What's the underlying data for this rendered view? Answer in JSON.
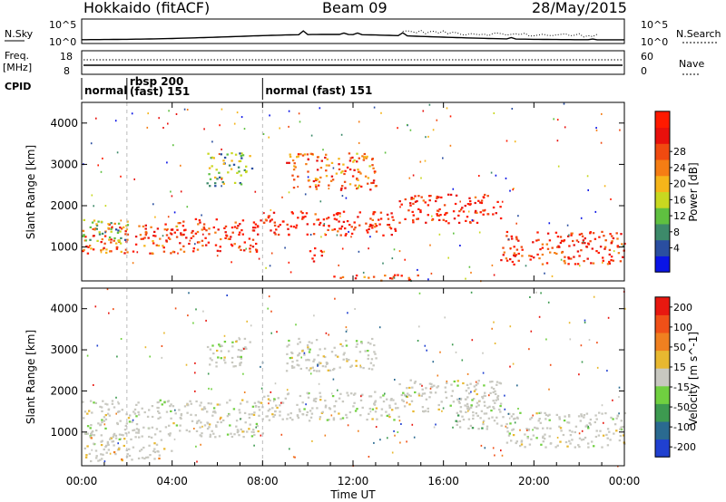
{
  "header": {
    "station": "Hokkaido (fitACF)",
    "beam": "Beam 09",
    "date": "28/May/2015"
  },
  "noise_panel": {
    "left_label": "N.Sky",
    "right_label": "N.Search",
    "tick_top": "10^5",
    "tick_bottom": "10^0"
  },
  "freq_panel": {
    "left_label_1": "Freq.",
    "left_label_2": "[MHz]",
    "right_label": "Nave",
    "left_ticks": [
      "18",
      "8"
    ],
    "right_ticks": [
      "60",
      "0"
    ]
  },
  "cpid_panel": {
    "label": "CPID",
    "segments": [
      {
        "start_h": 0.0,
        "end_h": 2.0,
        "text1": "normal",
        "text2": ""
      },
      {
        "start_h": 2.0,
        "end_h": 8.0,
        "text1": "rbsp 200",
        "text2": "(fast) 151"
      },
      {
        "start_h": 8.0,
        "end_h": 24.0,
        "text1": "normal (fast) 151",
        "text2": ""
      }
    ]
  },
  "chart_data": [
    {
      "type": "heatmap",
      "name": "Power",
      "ylabel": "Slant Range [km]",
      "ylim": [
        180,
        4500
      ],
      "yticks": [
        1000,
        2000,
        3000,
        4000
      ],
      "colorbar_label": "Power [dB]",
      "colorbar_ticks": [
        "4",
        "8",
        "12",
        "16",
        "20",
        "24",
        "28"
      ],
      "colorbar_colors": [
        "#0a14e6",
        "#2a4ea0",
        "#3d8a6a",
        "#5fc040",
        "#c8d820",
        "#f5b51a",
        "#f57d14",
        "#f04a10",
        "#e8100c",
        "#ff1a00"
      ],
      "regions": [
        {
          "t0": 0.0,
          "t1": 4.0,
          "r0": 850,
          "r1": 1600,
          "level": 0.75
        },
        {
          "t0": 0.0,
          "t1": 2.0,
          "r0": 1100,
          "r1": 1700,
          "level": 0.4
        },
        {
          "t0": 4.0,
          "t1": 8.0,
          "r0": 900,
          "r1": 1700,
          "level": 0.85
        },
        {
          "t0": 8.0,
          "t1": 14.0,
          "r0": 1300,
          "r1": 1900,
          "level": 0.9
        },
        {
          "t0": 14.0,
          "t1": 18.5,
          "r0": 1600,
          "r1": 2300,
          "level": 0.9
        },
        {
          "t0": 18.5,
          "t1": 24.0,
          "r0": 600,
          "r1": 1400,
          "level": 0.85
        },
        {
          "t0": 5.5,
          "t1": 7.5,
          "r0": 2500,
          "r1": 3300,
          "level": 0.35
        },
        {
          "t0": 9.0,
          "t1": 13.0,
          "r0": 2400,
          "r1": 3300,
          "level": 0.7
        },
        {
          "t0": 10.0,
          "t1": 10.6,
          "r0": 600,
          "r1": 1000,
          "level": 0.95
        },
        {
          "t0": 11.0,
          "t1": 15.0,
          "r0": 200,
          "r1": 350,
          "level": 0.8
        }
      ]
    },
    {
      "type": "heatmap",
      "name": "Velocity",
      "ylabel": "Slant Range [km]",
      "ylim": [
        180,
        4500
      ],
      "yticks": [
        1000,
        2000,
        3000,
        4000
      ],
      "xlabel": "Time UT",
      "xlim": [
        0,
        24
      ],
      "xticks": [
        "00:00",
        "04:00",
        "08:00",
        "12:00",
        "16:00",
        "20:00",
        "00:00"
      ],
      "colorbar_label": "Velocity [m s^-1]",
      "colorbar_ticks": [
        "200",
        "100",
        "50",
        "15",
        "-15",
        "-50",
        "-100",
        "-200"
      ],
      "colorbar_colors": [
        "#2040d0",
        "#2a6a90",
        "#3d9a50",
        "#70d040",
        "#c8c8c0",
        "#e8b830",
        "#f08020",
        "#f05018",
        "#e81810"
      ],
      "regions": [
        {
          "t0": 0.0,
          "t1": 8.0,
          "r0": 900,
          "r1": 1800,
          "level": 0.5
        },
        {
          "t0": 8.0,
          "t1": 14.0,
          "r0": 1300,
          "r1": 2000,
          "level": 0.5
        },
        {
          "t0": 14.0,
          "t1": 18.5,
          "r0": 1500,
          "r1": 2300,
          "level": 0.5
        },
        {
          "t0": 18.5,
          "t1": 24.0,
          "r0": 650,
          "r1": 1500,
          "level": 0.5
        },
        {
          "t0": 9.0,
          "t1": 13.0,
          "r0": 2500,
          "r1": 3300,
          "level": 0.5
        },
        {
          "t0": 5.5,
          "t1": 7.5,
          "r0": 2600,
          "r1": 3300,
          "level": 0.5
        },
        {
          "t0": 16.5,
          "t1": 18.5,
          "r0": 1100,
          "r1": 1900,
          "level": 0.35
        },
        {
          "t0": 0.0,
          "t1": 4.0,
          "r0": 300,
          "r1": 1000,
          "level": 0.55
        }
      ]
    }
  ]
}
